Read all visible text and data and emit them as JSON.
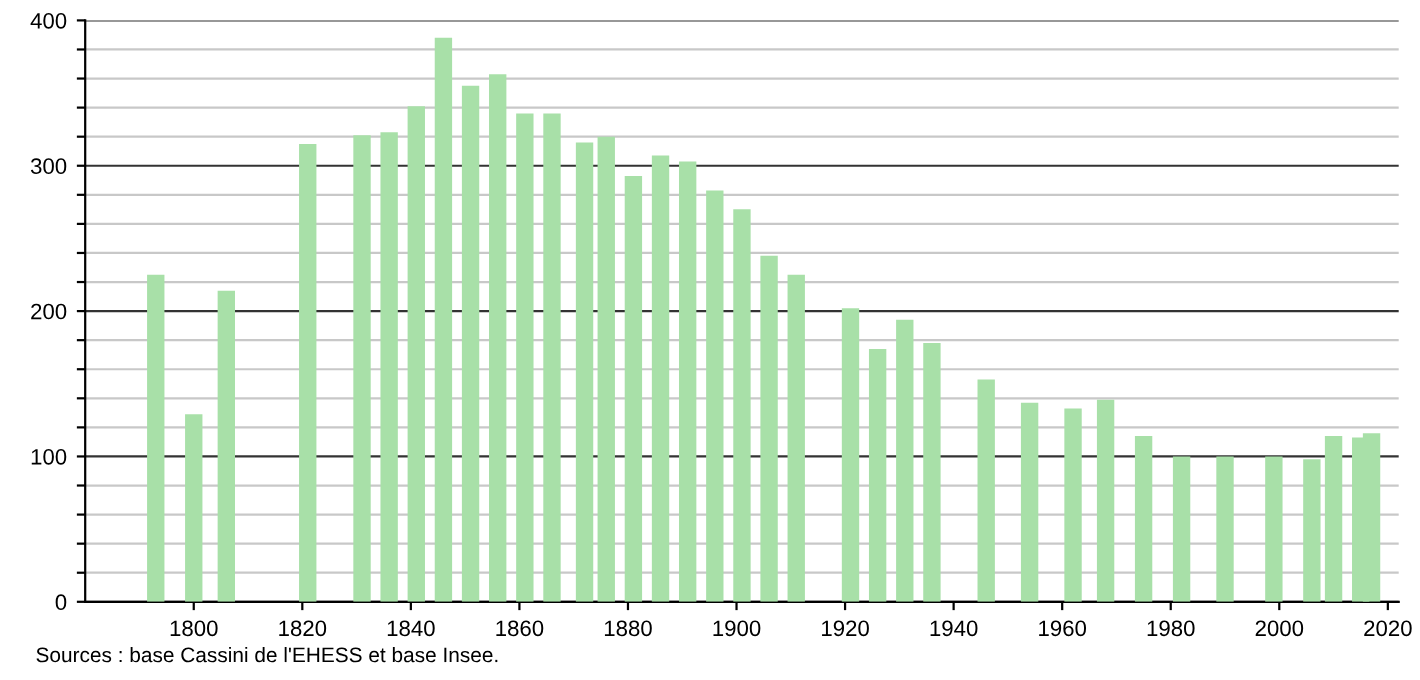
{
  "chart_data": {
    "type": "bar",
    "x": [
      1793,
      1800,
      1806,
      1821,
      1831,
      1836,
      1841,
      1846,
      1851,
      1856,
      1861,
      1866,
      1872,
      1876,
      1881,
      1886,
      1891,
      1896,
      1901,
      1906,
      1911,
      1921,
      1926,
      1931,
      1936,
      1946,
      1954,
      1962,
      1968,
      1975,
      1982,
      1990,
      1999,
      2006,
      2010,
      2015,
      2017
    ],
    "values": [
      225,
      129,
      214,
      315,
      321,
      323,
      341,
      388,
      355,
      363,
      336,
      336,
      316,
      320,
      293,
      307,
      303,
      283,
      270,
      238,
      225,
      202,
      174,
      194,
      178,
      153,
      137,
      133,
      139,
      114,
      100,
      100,
      100,
      98,
      114,
      113,
      116
    ],
    "color": "#a8e0a8",
    "xlim": [
      1780,
      2022
    ],
    "xticks": [
      1800,
      1820,
      1840,
      1860,
      1880,
      1900,
      1920,
      1940,
      1960,
      1980,
      2000,
      2020
    ],
    "ylim": [
      0,
      400
    ],
    "yticks": [
      0,
      {
        "value": 20,
        "label": null
      },
      {
        "value": 40,
        "label": null
      },
      {
        "value": 60,
        "label": null
      },
      {
        "value": 80,
        "label": null
      },
      100,
      {
        "value": 120,
        "label": null
      },
      {
        "value": 140,
        "label": null
      },
      {
        "value": 160,
        "label": null
      },
      {
        "value": 180,
        "label": null
      },
      200,
      {
        "value": 220,
        "label": null
      },
      {
        "value": 240,
        "label": null
      },
      {
        "value": 260,
        "label": null
      },
      {
        "value": 280,
        "label": null
      },
      300,
      {
        "value": 320,
        "label": null
      },
      {
        "value": 340,
        "label": null
      },
      {
        "value": 360,
        "label": null
      },
      {
        "value": 380,
        "label": null
      },
      400
    ],
    "grid": "y",
    "annotations": [
      "Sources : base Cassini de l'EHESS et base Insee."
    ]
  }
}
